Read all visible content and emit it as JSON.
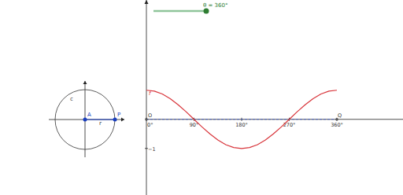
{
  "chart_data": {
    "type": "line",
    "x": [
      0,
      15,
      30,
      45,
      60,
      75,
      90,
      105,
      120,
      135,
      150,
      165,
      180,
      195,
      210,
      225,
      240,
      255,
      270,
      285,
      300,
      315,
      330,
      345,
      360
    ],
    "series": [
      {
        "name": "f",
        "color": "#d8343a",
        "values": [
          1,
          0.97,
          0.87,
          0.71,
          0.5,
          0.26,
          0,
          -0.26,
          -0.5,
          -0.71,
          -0.87,
          -0.97,
          -1,
          -0.97,
          -0.87,
          -0.71,
          -0.5,
          -0.26,
          0,
          0.26,
          0.5,
          0.71,
          0.87,
          0.97,
          1
        ]
      }
    ],
    "xlim": [
      0,
      485
    ],
    "ylim": [
      -2.6,
      4.1
    ],
    "xticks": [
      {
        "value": 0,
        "label": "0°"
      },
      {
        "value": 90,
        "label": "90°"
      },
      {
        "value": 180,
        "label": "180°"
      },
      {
        "value": 270,
        "label": "270°"
      },
      {
        "value": 360,
        "label": "360°"
      }
    ],
    "yticks": [
      {
        "value": -1,
        "label": "−1"
      }
    ],
    "annotations": {
      "slider": "θ = 360°",
      "origin": "O",
      "end": "Q",
      "circle": "c",
      "center": "A",
      "radius": "r",
      "point": "P"
    }
  }
}
